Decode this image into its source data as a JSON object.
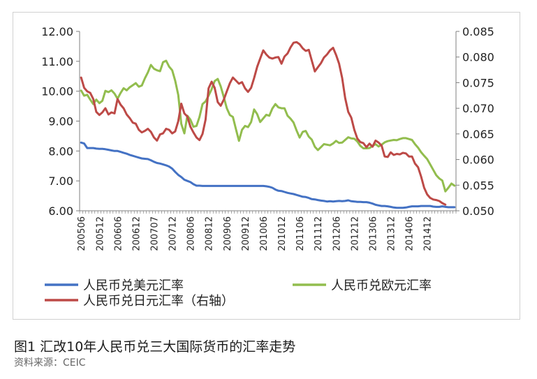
{
  "caption": "图1  汇改10年人民币兑三大国际货币的汇率走势",
  "source": "资料来源：CEIC",
  "colors": {
    "usd": "#4472c4",
    "eur": "#92bd4e",
    "jpy": "#bd4a47",
    "axis": "#7f7f7f",
    "text": "#222222"
  },
  "chart_data": {
    "type": "line",
    "grid": false,
    "legend_position": "bottom",
    "x_tick_labels": [
      "200506",
      "200512",
      "200606",
      "200612",
      "200707",
      "200712",
      "200806",
      "200812",
      "200906",
      "200912",
      "201006",
      "201012",
      "201106",
      "201112",
      "201206",
      "201212",
      "201306",
      "201312",
      "201406",
      "201412"
    ],
    "left_axis": {
      "ylim": [
        6,
        12
      ],
      "ticks": [
        "6.00",
        "7.00",
        "8.00",
        "9.00",
        "10.00",
        "11.00",
        "12.00"
      ]
    },
    "right_axis": {
      "ylim": [
        0.05,
        0.085
      ],
      "ticks": [
        "0.050",
        "0.055",
        "0.060",
        "0.065",
        "0.070",
        "0.075",
        "0.080",
        "0.085"
      ]
    },
    "series": [
      {
        "name": "人民币兑美元汇率",
        "axis": "left",
        "color_key": "usd",
        "values": [
          8.28,
          8.25,
          8.1,
          8.1,
          8.1,
          8.08,
          8.07,
          8.07,
          8.06,
          8.04,
          8.02,
          8.0,
          8.0,
          7.97,
          7.94,
          7.91,
          7.87,
          7.84,
          7.81,
          7.78,
          7.75,
          7.74,
          7.73,
          7.69,
          7.64,
          7.6,
          7.58,
          7.55,
          7.52,
          7.48,
          7.41,
          7.3,
          7.2,
          7.13,
          7.04,
          7.0,
          6.96,
          6.89,
          6.84,
          6.84,
          6.83,
          6.83,
          6.83,
          6.83,
          6.83,
          6.83,
          6.83,
          6.83,
          6.83,
          6.83,
          6.83,
          6.83,
          6.83,
          6.83,
          6.83,
          6.83,
          6.83,
          6.83,
          6.83,
          6.83,
          6.83,
          6.82,
          6.8,
          6.77,
          6.71,
          6.67,
          6.66,
          6.63,
          6.6,
          6.58,
          6.56,
          6.53,
          6.5,
          6.47,
          6.46,
          6.43,
          6.39,
          6.38,
          6.36,
          6.34,
          6.33,
          6.31,
          6.32,
          6.31,
          6.32,
          6.33,
          6.32,
          6.33,
          6.35,
          6.32,
          6.31,
          6.3,
          6.3,
          6.29,
          6.29,
          6.27,
          6.24,
          6.2,
          6.18,
          6.16,
          6.16,
          6.15,
          6.13,
          6.11,
          6.1,
          6.1,
          6.1,
          6.11,
          6.13,
          6.15,
          6.15,
          6.15,
          6.16,
          6.16,
          6.16,
          6.16,
          6.14,
          6.13,
          6.13,
          6.15,
          6.13,
          6.12,
          6.12,
          6.12
        ]
      },
      {
        "name": "人民币兑欧元汇率",
        "axis": "left",
        "color_key": "eur",
        "values": [
          10.02,
          9.85,
          9.88,
          9.72,
          9.57,
          9.72,
          9.6,
          9.68,
          10.01,
          9.97,
          10.03,
          9.92,
          9.75,
          9.94,
          10.1,
          10.03,
          10.13,
          10.2,
          10.27,
          10.15,
          10.19,
          10.43,
          10.63,
          10.88,
          10.75,
          10.7,
          10.67,
          10.97,
          11.02,
          10.82,
          10.7,
          10.35,
          9.87,
          8.91,
          8.59,
          9.18,
          9.05,
          8.81,
          8.84,
          9.14,
          9.57,
          9.66,
          9.85,
          10.07,
          10.34,
          10.41,
          10.16,
          9.8,
          9.43,
          9.2,
          9.14,
          8.73,
          8.34,
          8.71,
          8.84,
          8.8,
          8.97,
          9.39,
          9.23,
          8.97,
          9.09,
          9.21,
          9.18,
          9.42,
          9.57,
          9.46,
          9.43,
          9.43,
          9.18,
          9.08,
          8.95,
          8.68,
          8.45,
          8.64,
          8.67,
          8.48,
          8.38,
          8.14,
          8.03,
          8.13,
          8.23,
          8.21,
          8.19,
          8.25,
          8.34,
          8.27,
          8.28,
          8.37,
          8.46,
          8.42,
          8.41,
          8.32,
          8.17,
          8.09,
          8.09,
          8.1,
          8.17,
          8.23,
          8.15,
          8.21,
          8.29,
          8.33,
          8.35,
          8.37,
          8.36,
          8.4,
          8.43,
          8.43,
          8.4,
          8.37,
          8.23,
          8.11,
          7.96,
          7.84,
          7.73,
          7.55,
          7.37,
          7.19,
          7.08,
          7.01,
          6.65,
          6.77,
          6.91,
          6.84
        ]
      },
      {
        "name": "人民币兑日元汇率（右轴）",
        "axis": "right",
        "color_key": "jpy",
        "values": [
          0.076,
          0.074,
          0.0733,
          0.073,
          0.0718,
          0.0693,
          0.0687,
          0.0692,
          0.07,
          0.0688,
          0.0692,
          0.069,
          0.0718,
          0.0707,
          0.07,
          0.0688,
          0.0681,
          0.0672,
          0.067,
          0.0658,
          0.0653,
          0.0656,
          0.066,
          0.0654,
          0.0643,
          0.0637,
          0.0649,
          0.0651,
          0.066,
          0.0658,
          0.0651,
          0.0655,
          0.0675,
          0.0709,
          0.069,
          0.0684,
          0.0664,
          0.0653,
          0.0643,
          0.0638,
          0.065,
          0.0678,
          0.0739,
          0.0752,
          0.074,
          0.0712,
          0.0705,
          0.0717,
          0.0733,
          0.0749,
          0.076,
          0.0754,
          0.0748,
          0.0751,
          0.0739,
          0.0732,
          0.074,
          0.0759,
          0.0781,
          0.0797,
          0.0813,
          0.0805,
          0.0799,
          0.0797,
          0.0799,
          0.08,
          0.0787,
          0.0801,
          0.0807,
          0.0819,
          0.0828,
          0.0829,
          0.0825,
          0.0817,
          0.0812,
          0.0814,
          0.0793,
          0.0772,
          0.078,
          0.0788,
          0.0799,
          0.0805,
          0.0813,
          0.0818,
          0.0804,
          0.0787,
          0.0759,
          0.072,
          0.0693,
          0.0682,
          0.0658,
          0.0641,
          0.0634,
          0.0632,
          0.0624,
          0.0631,
          0.0625,
          0.0637,
          0.0633,
          0.0627,
          0.0606,
          0.0605,
          0.0614,
          0.0609,
          0.0611,
          0.061,
          0.0613,
          0.0612,
          0.0606,
          0.0606,
          0.0592,
          0.0585,
          0.0567,
          0.0545,
          0.0532,
          0.0525,
          0.0522,
          0.0521,
          0.0519,
          0.0515,
          0.0512
        ]
      }
    ]
  }
}
